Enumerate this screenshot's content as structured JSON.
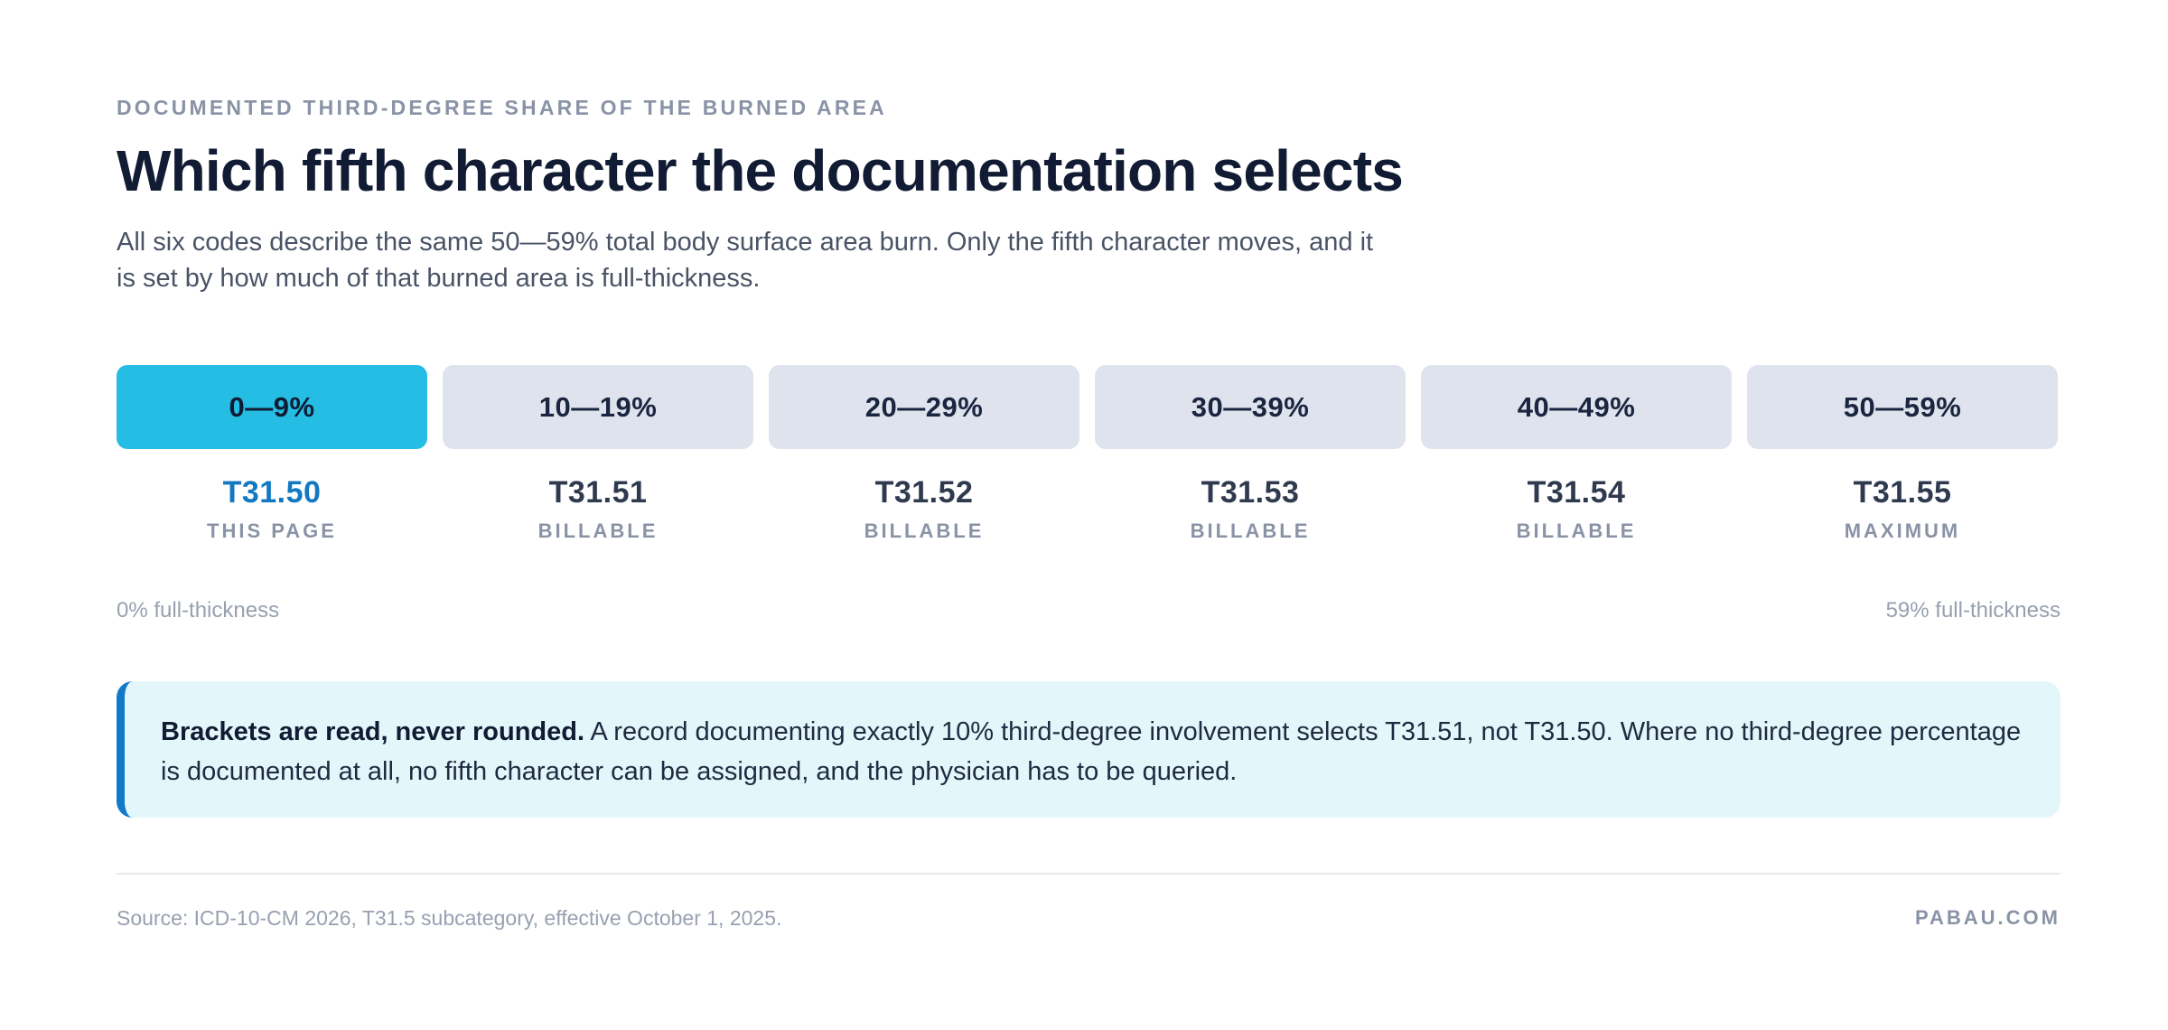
{
  "header": {
    "eyebrow": "DOCUMENTED THIRD-DEGREE SHARE OF THE BURNED AREA",
    "title": "Which fifth character the documentation selects",
    "subtitle": "All six codes describe the same 50—59% total body surface area burn. Only the fifth character moves, and it is set by how much of that burned area is full-thickness."
  },
  "brackets": [
    {
      "range": "0—9%",
      "code": "T31.50",
      "status": "THIS PAGE",
      "active": true
    },
    {
      "range": "10—19%",
      "code": "T31.51",
      "status": "BILLABLE",
      "active": false
    },
    {
      "range": "20—29%",
      "code": "T31.52",
      "status": "BILLABLE",
      "active": false
    },
    {
      "range": "30—39%",
      "code": "T31.53",
      "status": "BILLABLE",
      "active": false
    },
    {
      "range": "40—49%",
      "code": "T31.54",
      "status": "BILLABLE",
      "active": false
    },
    {
      "range": "50—59%",
      "code": "T31.55",
      "status": "MAXIMUM",
      "active": false
    }
  ],
  "scale": {
    "left_label": "0% full-thickness",
    "right_label": "59% full-thickness"
  },
  "callout": {
    "lead": "Brackets are read, never rounded.",
    "body": " A record documenting exactly 10% third-degree involvement selects T31.51, not T31.50. Where no third-degree percentage is documented at all, no fifth character can be assigned, and the physician has to be queried."
  },
  "footer": {
    "source": "Source: ICD-10-CM 2026, T31.5 subcategory, effective October 1, 2025.",
    "brand": "PABAU.COM"
  },
  "colors": {
    "accent": "#25bde3",
    "active_code": "#1378c2",
    "callout_bg": "#e3f6fa",
    "callout_border": "#1179c9"
  }
}
